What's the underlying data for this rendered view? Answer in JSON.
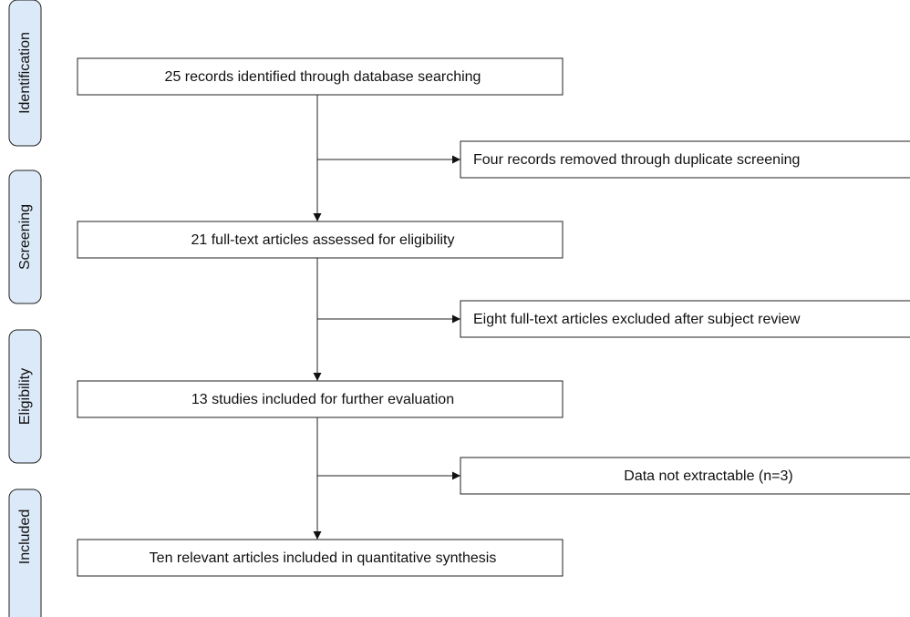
{
  "stages": [
    "Identification",
    "Screening",
    "Eligibility",
    "Included"
  ],
  "steps": [
    "25 records identified through database searching",
    "21 full-text articles assessed for eligibility",
    "13 studies included for further evaluation",
    "Ten relevant articles included in quantitative synthesis"
  ],
  "exclusions": [
    "Four records removed through duplicate screening",
    "Eight full-text articles excluded after subject review",
    "Data not extractable (n=3)"
  ]
}
